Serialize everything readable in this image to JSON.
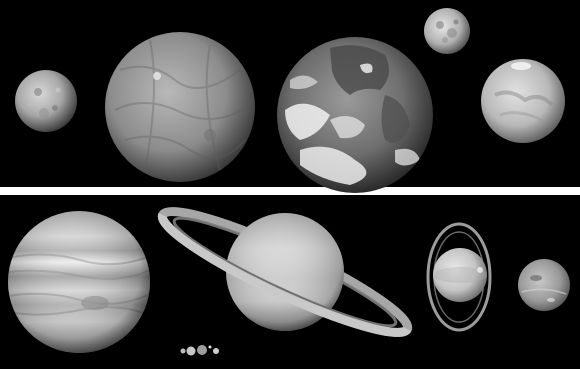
{
  "image": {
    "description_text": "",
    "panels": [
      {
        "name": "terrestrial-panel",
        "background": "#000000",
        "bodies": [
          "mercury",
          "venus",
          "earth",
          "moon",
          "mars"
        ]
      },
      {
        "name": "outer-planets-panel",
        "background": "#000000",
        "bodies": [
          "jupiter",
          "saturn",
          "uranus",
          "neptune",
          "inner-planets-scale-group"
        ]
      }
    ],
    "colors": {
      "background": "#000000",
      "divider": "#ffffff"
    }
  }
}
